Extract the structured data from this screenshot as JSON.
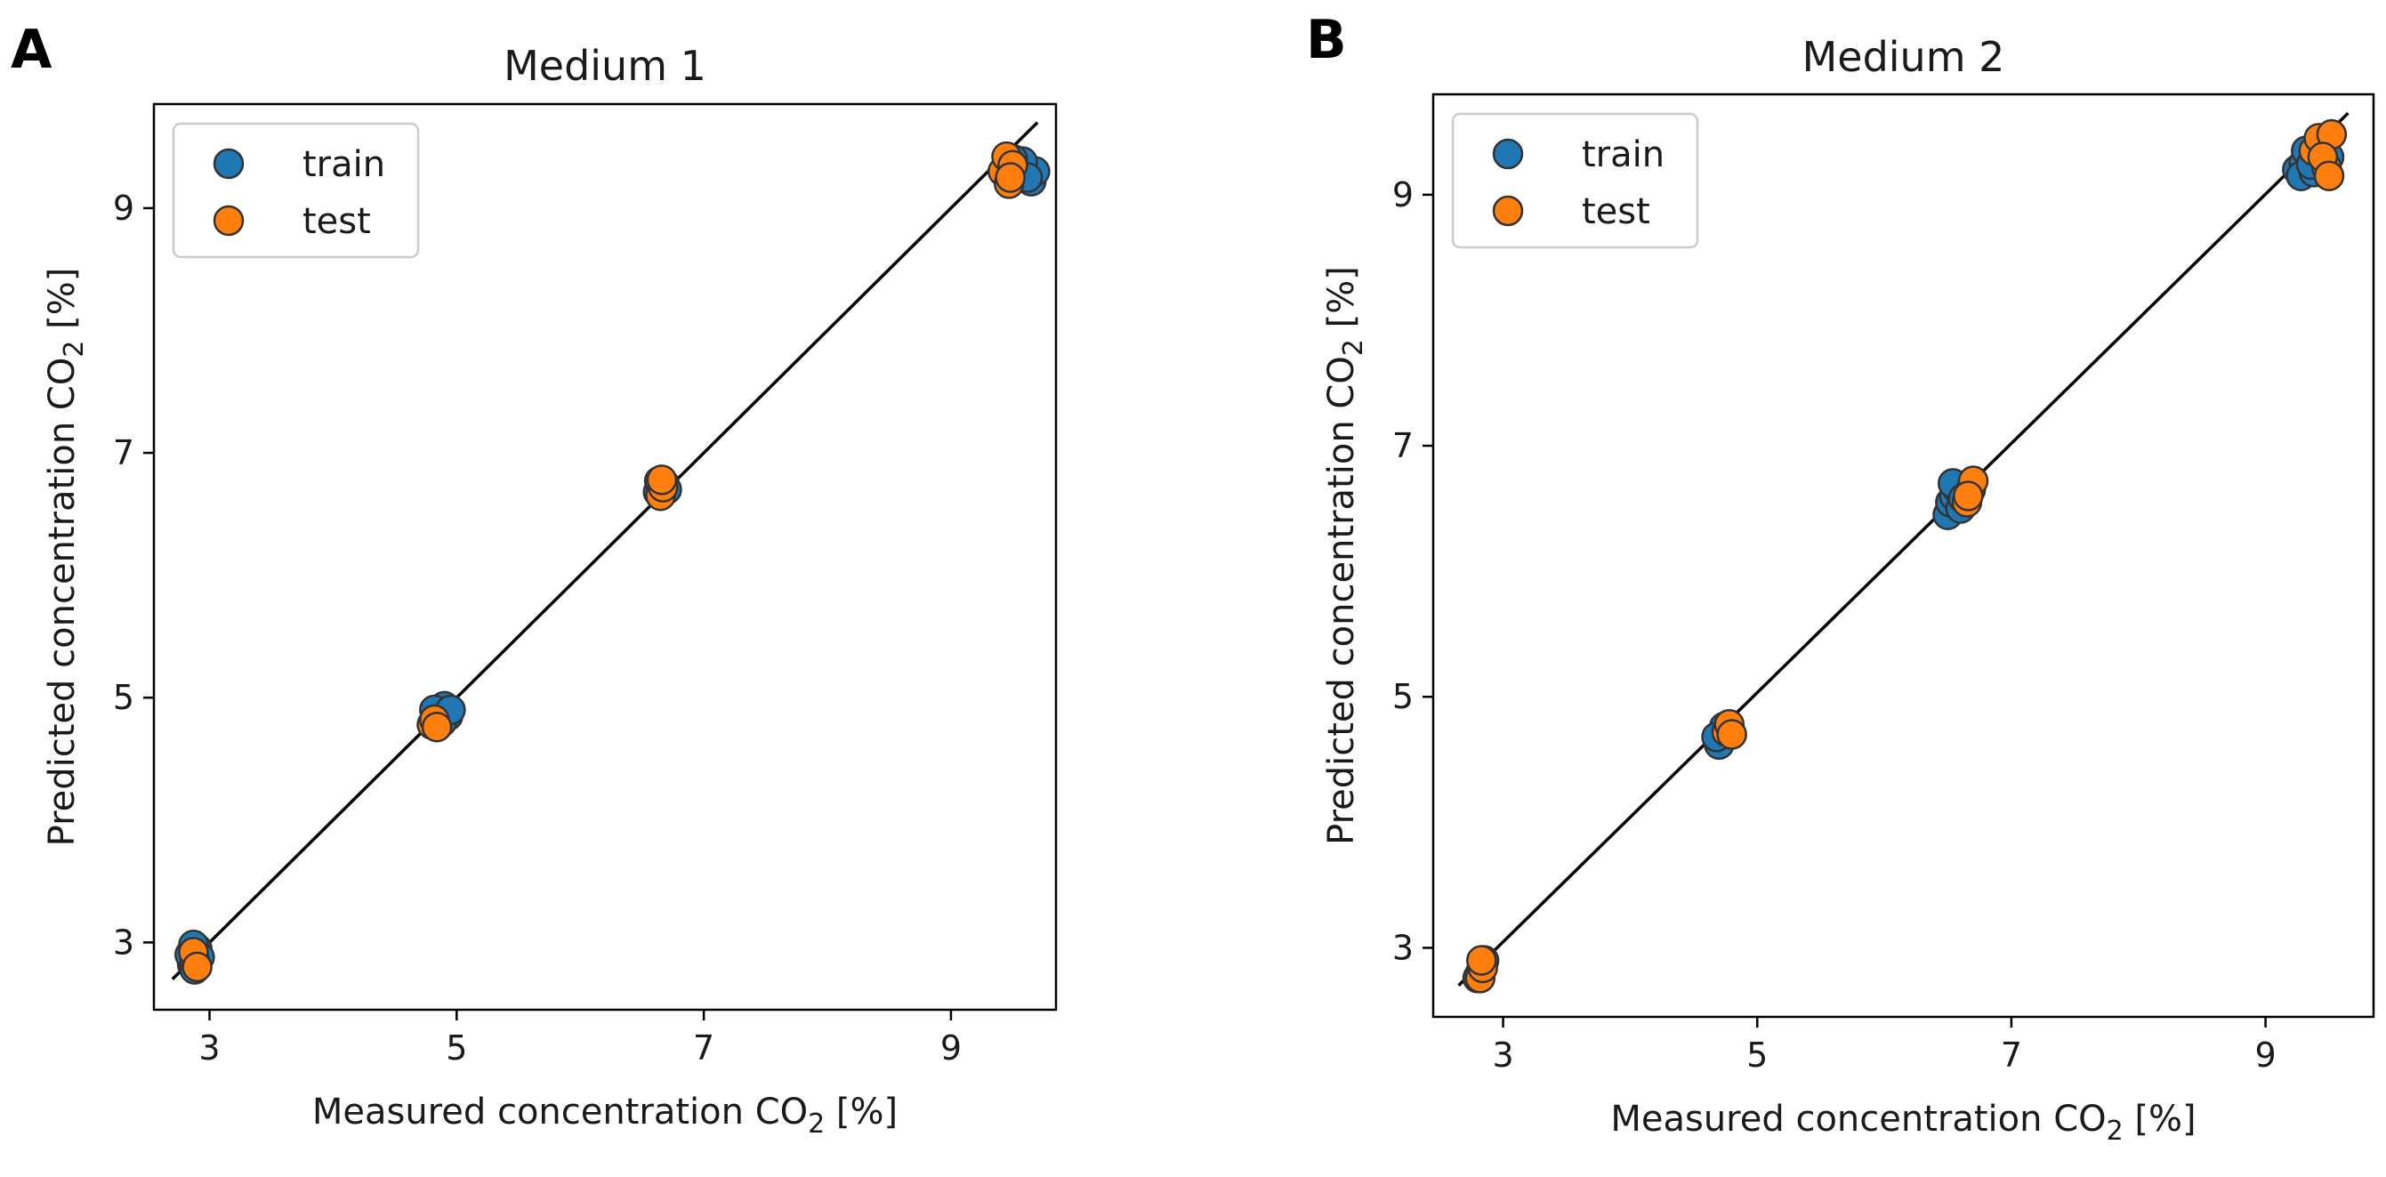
{
  "colors": {
    "train": "#1f77b4",
    "test": "#ff7f0e",
    "marker_edge": "#333333",
    "line": "#000000"
  },
  "chart_data": [
    {
      "type": "scatter",
      "panel_label": "A",
      "title": "Medium 1",
      "xlabel": "Measured concentration CO",
      "ylabel": "Predicted concentration CO",
      "label_subscript": "2",
      "label_suffix": " [%]",
      "xlim": [
        2.55,
        9.85
      ],
      "ylim": [
        2.45,
        9.85
      ],
      "xticks": [
        3,
        5,
        7,
        9
      ],
      "yticks": [
        3,
        5,
        7,
        9
      ],
      "xtick_labels": [
        "3",
        "5",
        "7",
        "9"
      ],
      "ytick_labels": [
        "3",
        "5",
        "7",
        "9"
      ],
      "reference_line": {
        "from": [
          2.7,
          2.7
        ],
        "to": [
          9.7,
          9.7
        ]
      },
      "legend": {
        "position": "top-left",
        "entries": [
          "train",
          "test"
        ]
      },
      "series": [
        {
          "name": "train",
          "points": [
            [
              2.86,
              2.82
            ],
            [
              2.9,
              2.95
            ],
            [
              2.88,
              2.78
            ],
            [
              2.84,
              2.9
            ],
            [
              2.92,
              2.88
            ],
            [
              2.87,
              2.98
            ],
            [
              4.85,
              4.88
            ],
            [
              4.9,
              4.93
            ],
            [
              4.93,
              4.85
            ],
            [
              4.88,
              4.8
            ],
            [
              4.82,
              4.9
            ],
            [
              4.95,
              4.9
            ],
            [
              6.63,
              6.68
            ],
            [
              6.68,
              6.75
            ],
            [
              6.7,
              6.7
            ],
            [
              6.64,
              6.77
            ],
            [
              9.45,
              9.35
            ],
            [
              9.5,
              9.3
            ],
            [
              9.55,
              9.28
            ],
            [
              9.6,
              9.32
            ],
            [
              9.65,
              9.22
            ],
            [
              9.68,
              9.3
            ],
            [
              9.58,
              9.38
            ],
            [
              9.62,
              9.25
            ],
            [
              9.5,
              9.4
            ]
          ]
        },
        {
          "name": "test",
          "points": [
            [
              2.88,
              2.85
            ],
            [
              2.87,
              2.92
            ],
            [
              2.9,
              2.8
            ],
            [
              4.8,
              4.78
            ],
            [
              4.82,
              4.82
            ],
            [
              4.84,
              4.76
            ],
            [
              6.65,
              6.65
            ],
            [
              6.67,
              6.72
            ],
            [
              6.66,
              6.78
            ],
            [
              9.42,
              9.3
            ],
            [
              9.45,
              9.42
            ],
            [
              9.47,
              9.2
            ],
            [
              9.5,
              9.35
            ],
            [
              9.48,
              9.25
            ]
          ]
        }
      ]
    },
    {
      "type": "scatter",
      "panel_label": "B",
      "title": "Medium 2",
      "xlabel": "Measured concentration CO",
      "ylabel": "Predicted concentration CO",
      "label_subscript": "2",
      "label_suffix": " [%]",
      "xlim": [
        2.45,
        9.85
      ],
      "ylim": [
        2.45,
        9.8
      ],
      "xticks": [
        3,
        5,
        7,
        9
      ],
      "yticks": [
        3,
        5,
        7,
        9
      ],
      "xtick_labels": [
        "3",
        "5",
        "7",
        "9"
      ],
      "ytick_labels": [
        "3",
        "5",
        "7",
        "9"
      ],
      "reference_line": {
        "from": [
          2.65,
          2.7
        ],
        "to": [
          9.65,
          9.65
        ]
      },
      "legend": {
        "position": "top-left",
        "entries": [
          "train",
          "test"
        ]
      },
      "series": [
        {
          "name": "train",
          "points": [
            [
              2.82,
              2.8
            ],
            [
              2.85,
              2.9
            ],
            [
              2.8,
              2.76
            ],
            [
              4.7,
              4.62
            ],
            [
              4.72,
              4.7
            ],
            [
              4.74,
              4.76
            ],
            [
              4.68,
              4.68
            ],
            [
              6.5,
              6.45
            ],
            [
              6.52,
              6.55
            ],
            [
              6.55,
              6.6
            ],
            [
              6.58,
              6.65
            ],
            [
              6.6,
              6.5
            ],
            [
              6.54,
              6.7
            ],
            [
              6.62,
              6.58
            ],
            [
              9.25,
              9.2
            ],
            [
              9.3,
              9.25
            ],
            [
              9.35,
              9.3
            ],
            [
              9.28,
              9.15
            ],
            [
              9.4,
              9.2
            ],
            [
              9.45,
              9.28
            ],
            [
              9.32,
              9.35
            ],
            [
              9.38,
              9.18
            ],
            [
              9.42,
              9.38
            ],
            [
              9.5,
              9.3
            ],
            [
              9.36,
              9.24
            ]
          ]
        },
        {
          "name": "test",
          "points": [
            [
              2.82,
              2.76
            ],
            [
              2.84,
              2.84
            ],
            [
              2.83,
              2.9
            ],
            [
              4.76,
              4.72
            ],
            [
              4.78,
              4.78
            ],
            [
              4.8,
              4.7
            ],
            [
              6.65,
              6.55
            ],
            [
              6.68,
              6.65
            ],
            [
              6.7,
              6.72
            ],
            [
              6.66,
              6.6
            ],
            [
              9.38,
              9.35
            ],
            [
              9.42,
              9.45
            ],
            [
              9.48,
              9.22
            ],
            [
              9.52,
              9.48
            ],
            [
              9.45,
              9.3
            ],
            [
              9.5,
              9.15
            ]
          ]
        }
      ]
    }
  ]
}
